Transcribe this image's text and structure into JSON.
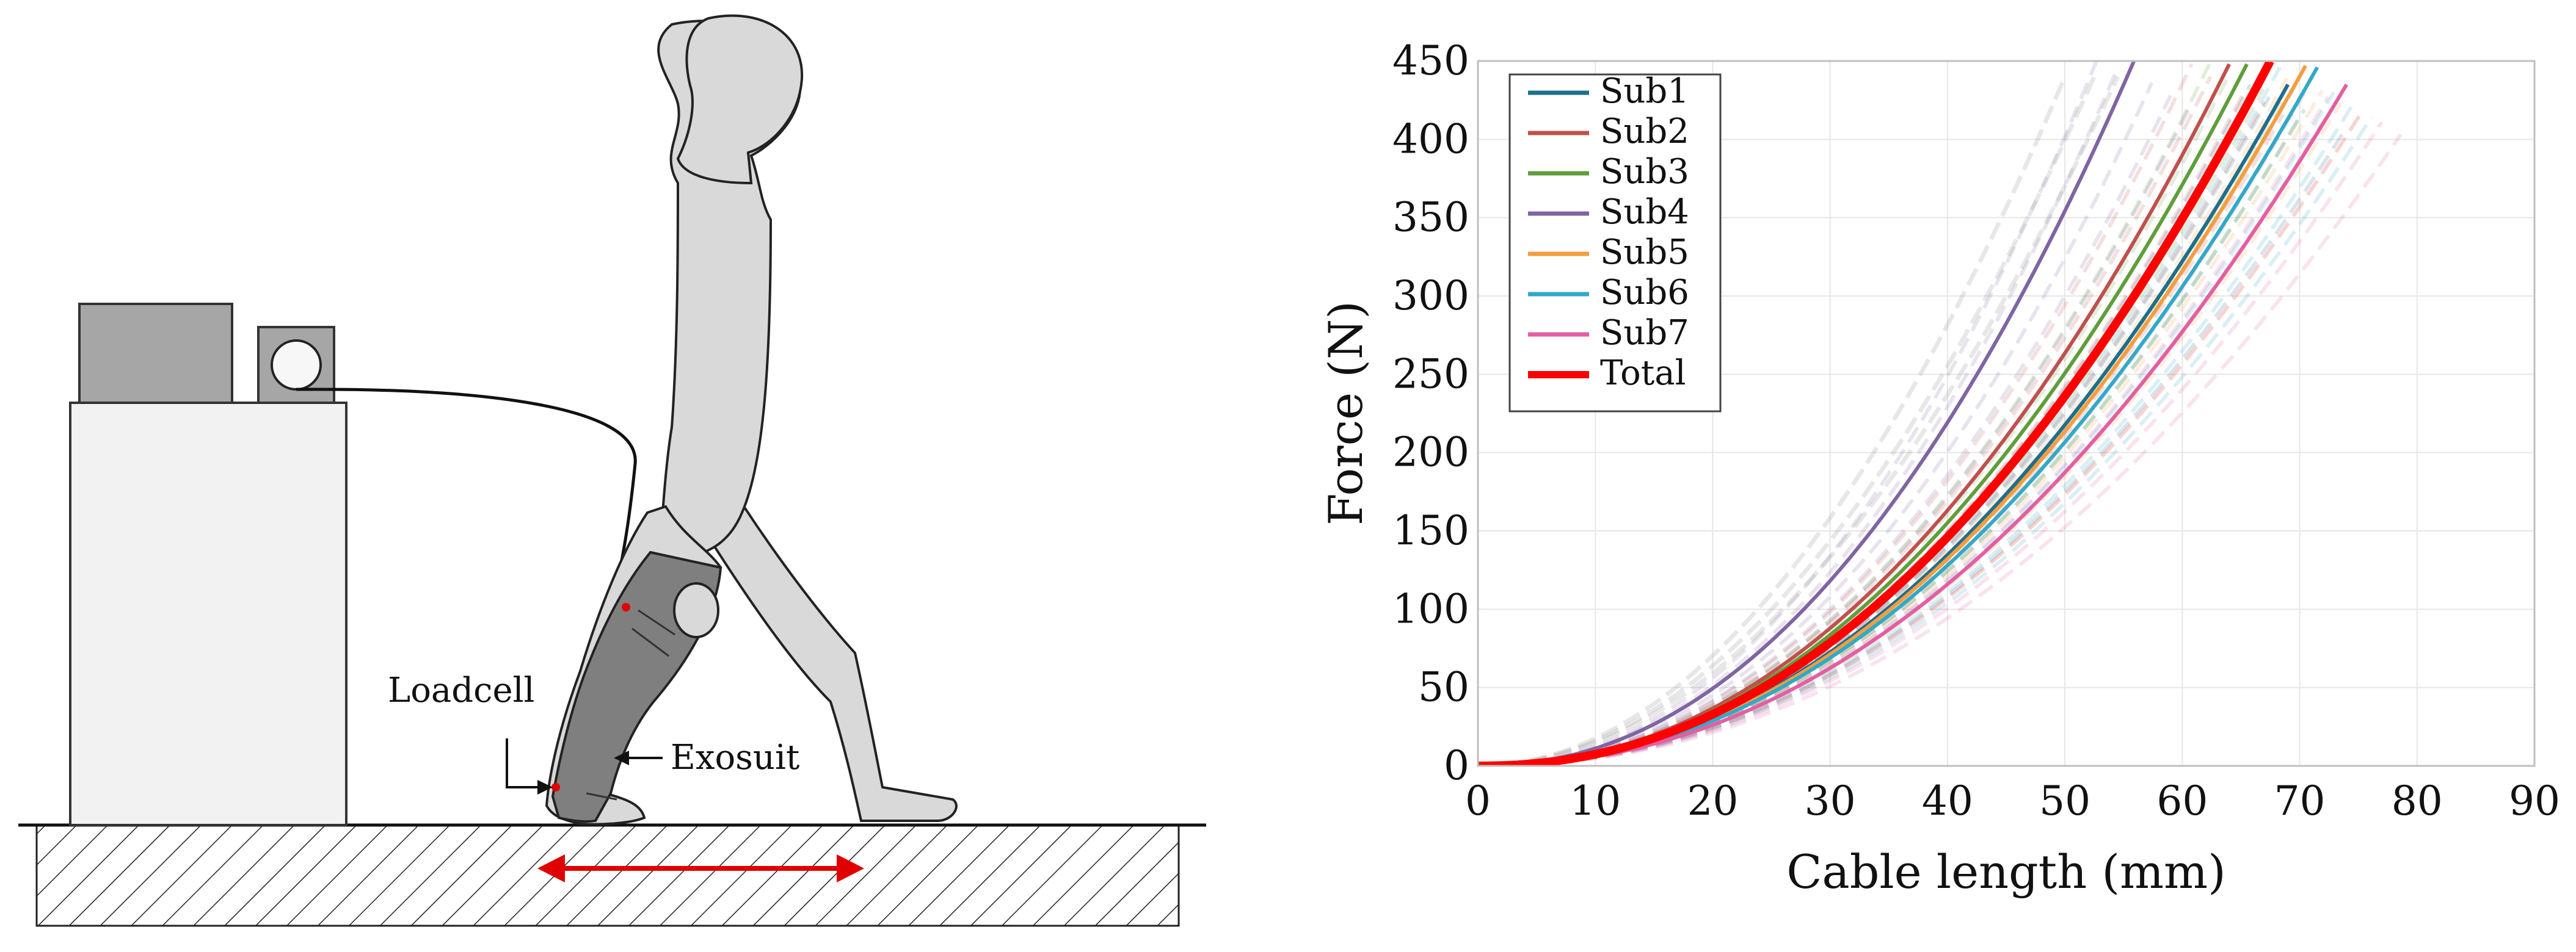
{
  "diagram": {
    "labels": {
      "loadcell": "Loadcell",
      "exosuit": "Exosuit"
    }
  },
  "chart_data": {
    "type": "line",
    "title": "",
    "xlabel": "Cable length (mm)",
    "ylabel": "Force (N)",
    "xlim": [
      0,
      90
    ],
    "ylim": [
      0,
      450
    ],
    "xticks": [
      0,
      10,
      20,
      30,
      40,
      50,
      60,
      70,
      80,
      90
    ],
    "yticks": [
      0,
      50,
      100,
      150,
      200,
      250,
      300,
      350,
      400,
      450
    ],
    "grid": true,
    "legend_position": "top-left",
    "series": [
      {
        "name": "Sub1",
        "color": "#1f6e8c",
        "x_end": 69,
        "y_end": 435
      },
      {
        "name": "Sub2",
        "color": "#c0504d",
        "x_end": 64,
        "y_end": 448
      },
      {
        "name": "Sub3",
        "color": "#5f9e3a",
        "x_end": 65.5,
        "y_end": 448
      },
      {
        "name": "Sub4",
        "color": "#8064a2",
        "x_end": 56,
        "y_end": 452
      },
      {
        "name": "Sub5",
        "color": "#f59d3d",
        "x_end": 70.5,
        "y_end": 447
      },
      {
        "name": "Sub6",
        "color": "#31a9c9",
        "x_end": 71.5,
        "y_end": 446
      },
      {
        "name": "Sub7",
        "color": "#e55ea2",
        "x_end": 74,
        "y_end": 435
      },
      {
        "name": "Total",
        "color": "#ff0000",
        "x_end": 67.5,
        "y_end": 450
      }
    ]
  }
}
